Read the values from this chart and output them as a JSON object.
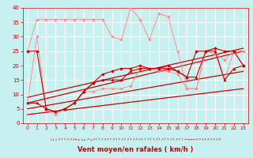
{
  "xlabel": "Vent moyen/en rafales ( km/h )",
  "xlim": [
    -0.5,
    23.5
  ],
  "ylim": [
    0,
    40
  ],
  "xticks": [
    0,
    1,
    2,
    3,
    4,
    5,
    6,
    7,
    8,
    9,
    10,
    11,
    12,
    13,
    14,
    15,
    16,
    17,
    18,
    19,
    20,
    21,
    22,
    23
  ],
  "yticks": [
    0,
    5,
    10,
    15,
    20,
    25,
    30,
    35,
    40
  ],
  "bg_color": "#c8f0f0",
  "grid_color": "#ffffff",
  "series_light_lower": [
    7,
    30,
    5,
    3,
    5,
    7,
    11,
    11,
    12,
    12,
    12,
    13,
    19,
    19,
    18,
    18,
    17,
    12,
    12,
    25,
    26,
    15,
    25,
    20
  ],
  "series_light_upper": [
    25,
    36,
    36,
    36,
    36,
    36,
    36,
    36,
    36,
    30,
    29,
    40,
    36,
    29,
    38,
    37,
    25,
    12,
    12,
    25,
    24,
    22,
    25,
    25
  ],
  "series_dark_lower": [
    7,
    7,
    5,
    4,
    5,
    7,
    11,
    14,
    15,
    15,
    15,
    18,
    19,
    19,
    19,
    19,
    18,
    16,
    16,
    25,
    25,
    15,
    19,
    20
  ],
  "series_dark_upper": [
    25,
    25,
    5,
    4,
    5,
    7,
    11,
    14,
    17,
    18,
    19,
    19,
    20,
    19,
    19,
    20,
    18,
    16,
    25,
    25,
    26,
    25,
    25,
    20
  ],
  "trend_lines": [
    [
      0,
      23,
      3,
      12
    ],
    [
      0,
      23,
      5,
      18
    ],
    [
      0,
      23,
      7,
      25
    ],
    [
      0,
      23,
      9,
      26
    ]
  ],
  "color_light": "#ff9090",
  "color_dark": "#cc0000",
  "symbols": "↓↓↓↗↑↑↗↗↗←↙↘↙↗↘↗↑↑↑↗↑↑↗↑↑↗↑↗↑↗↗↗↑↑↗↑↑↗↑↗↑↑↗↑↗↑↑↗→→→↗↗↗↗↗↗↗↗↗"
}
